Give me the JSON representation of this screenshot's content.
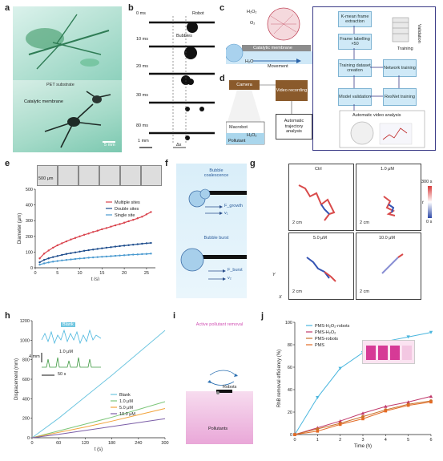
{
  "labels": {
    "a": "a",
    "b": "b",
    "c": "c",
    "d": "d",
    "e": "e",
    "f": "f",
    "g": "g",
    "h": "h",
    "i": "i",
    "j": "j"
  },
  "panel_a": {
    "pet": "PET substrate",
    "catalytic": "Catalytic membrane",
    "scale": "5 mm"
  },
  "panel_b": {
    "times": [
      "0 ms",
      "10 ms",
      "20 ms",
      "30 ms",
      "80 ms"
    ],
    "robot": "Robot",
    "bubbles": "Bubbles",
    "scale": "1 mm",
    "dx": "Δx"
  },
  "panel_c": {
    "h2o2": "H₂O₂",
    "o2": "O₂",
    "membrane": "Catalytic membrane",
    "h2o": "H₂O",
    "movement": "Movement"
  },
  "panel_d": {
    "camera": "Camera",
    "video": "Video recording",
    "auto": "Automatic trajectory analysis",
    "macrobot": "Macrobot",
    "pollutant": "Pollutant",
    "h2o2": "H₂O₂"
  },
  "pipeline": {
    "steps": [
      "K-mean frame extraction",
      "Frame labelling ×50",
      "Training dataset creation",
      "Network training",
      "Model validation",
      "ResNet training"
    ],
    "training": "Training",
    "validation": "Validation",
    "auto_video": "Automatic video analysis"
  },
  "panel_e": {
    "ylabel": "Diameter (μm)",
    "xlabel": "t (s)",
    "scale": "500 μm",
    "legend": [
      "Multiple sites",
      "Double sites",
      "Single site"
    ],
    "chart_data": {
      "type": "line",
      "xlabel": "t (s)",
      "ylabel": "Diameter (μm)",
      "xlim": [
        0,
        27
      ],
      "ylim": [
        0,
        500
      ],
      "xticks": [
        0,
        5,
        10,
        15,
        20,
        25
      ],
      "yticks": [
        0,
        100,
        200,
        300,
        400,
        500
      ],
      "series": [
        {
          "name": "Multiple sites",
          "color": "#d9434d",
          "x": [
            1,
            2,
            3,
            4,
            5,
            6,
            7,
            8,
            9,
            10,
            11,
            12,
            13,
            14,
            15,
            16,
            17,
            18,
            19,
            20,
            21,
            22,
            23,
            24,
            25,
            26
          ],
          "y": [
            60,
            90,
            110,
            128,
            143,
            156,
            168,
            180,
            190,
            200,
            210,
            218,
            228,
            236,
            245,
            253,
            262,
            270,
            278,
            287,
            296,
            305,
            315,
            325,
            340,
            355
          ]
        },
        {
          "name": "Double sites",
          "color": "#1d4c8c",
          "x": [
            1,
            2,
            3,
            4,
            5,
            6,
            7,
            8,
            9,
            10,
            11,
            12,
            13,
            14,
            15,
            16,
            17,
            18,
            19,
            20,
            21,
            22,
            23,
            24,
            25,
            26
          ],
          "y": [
            35,
            50,
            60,
            68,
            75,
            82,
            88,
            93,
            98,
            103,
            108,
            112,
            116,
            120,
            124,
            128,
            131,
            135,
            138,
            141,
            144,
            147,
            150,
            153,
            156,
            158
          ]
        },
        {
          "name": "Single site",
          "color": "#4a9ad0",
          "x": [
            1,
            2,
            3,
            4,
            5,
            6,
            7,
            8,
            9,
            10,
            11,
            12,
            13,
            14,
            15,
            16,
            17,
            18,
            19,
            20,
            21,
            22,
            23,
            24,
            25,
            26
          ],
          "y": [
            20,
            28,
            34,
            39,
            43,
            47,
            50,
            53,
            56,
            59,
            61,
            64,
            66,
            68,
            70,
            72,
            74,
            76,
            78,
            80,
            82,
            84,
            85,
            87,
            88,
            90
          ]
        }
      ]
    }
  },
  "panel_f": {
    "coalescence": "Bubble coalescence",
    "burst": "Bubble burst",
    "fgrowth": "F_growth",
    "v1": "v₁",
    "fburst": "F_burst",
    "v2": "v₂"
  },
  "panel_g": {
    "titles": [
      "Ctrl",
      "1.0 μM",
      "5.0 μM",
      "10.0 μM"
    ],
    "scale": "2 cm",
    "cbar_top": "300 s",
    "cbar_bot": "0 s",
    "cbar_label": "t",
    "x": "X",
    "y": "Y"
  },
  "panel_h": {
    "ylabel": "Displacement (mm)",
    "xlabel": "t (s)",
    "inset_blank": "Blank",
    "inset_1": "1.0 μM",
    "inset_scale_y": "4 mm",
    "inset_scale_x": "50 s",
    "chart_data": {
      "type": "line",
      "xlabel": "t (s)",
      "ylabel": "Displacement (mm)",
      "xlim": [
        0,
        300
      ],
      "ylim": [
        0,
        1200
      ],
      "xticks": [
        0,
        60,
        120,
        180,
        240,
        300
      ],
      "yticks": [
        0,
        200,
        400,
        600,
        800,
        1000,
        1200
      ],
      "series": [
        {
          "name": "Blank",
          "color": "#6fc6e0",
          "x": [
            0,
            60,
            120,
            180,
            240,
            300
          ],
          "y": [
            0,
            200,
            420,
            640,
            870,
            1100
          ]
        },
        {
          "name": "1.0 μM",
          "color": "#7cc679",
          "x": [
            0,
            60,
            120,
            180,
            240,
            300
          ],
          "y": [
            0,
            70,
            140,
            210,
            290,
            370
          ]
        },
        {
          "name": "5.0 μM",
          "color": "#f2a33a",
          "x": [
            0,
            60,
            120,
            180,
            240,
            300
          ],
          "y": [
            0,
            55,
            110,
            170,
            235,
            300
          ]
        },
        {
          "name": "10.0 μM",
          "color": "#7b5ea7",
          "x": [
            0,
            60,
            120,
            180,
            240,
            300
          ],
          "y": [
            0,
            35,
            75,
            115,
            155,
            195
          ]
        }
      ]
    }
  },
  "panel_i": {
    "title": "Active pollutant removal",
    "robots": "Robots",
    "pollutants": "Pollutants"
  },
  "panel_j": {
    "ylabel": "RhB removal efficiency (%)",
    "xlabel": "Time (h)",
    "chart_data": {
      "type": "line",
      "xlabel": "Time (h)",
      "ylabel": "RhB removal efficiency (%)",
      "xlim": [
        0,
        6
      ],
      "ylim": [
        0,
        100
      ],
      "xticks": [
        0,
        1,
        2,
        3,
        4,
        5,
        6
      ],
      "yticks": [
        0,
        20,
        40,
        60,
        80,
        100
      ],
      "series": [
        {
          "name": "PMS-H₂O₂-robots",
          "color": "#4ab6de",
          "marker": "tri-down",
          "x": [
            0,
            1,
            2,
            3,
            4,
            5,
            6
          ],
          "y": [
            0,
            33,
            59,
            73,
            83,
            87,
            91
          ]
        },
        {
          "name": "PMS-H₂O₂",
          "color": "#c0396b",
          "marker": "tri-up",
          "x": [
            0,
            1,
            2,
            3,
            4,
            5,
            6
          ],
          "y": [
            0,
            6,
            12,
            19,
            25,
            29,
            34
          ]
        },
        {
          "name": "PMS-robots",
          "color": "#c7712a",
          "marker": "circle",
          "x": [
            0,
            1,
            2,
            3,
            4,
            5,
            6
          ],
          "y": [
            0,
            5,
            10,
            16,
            22,
            27,
            30
          ]
        },
        {
          "name": "PMS",
          "color": "#e36a24",
          "marker": "square",
          "x": [
            0,
            1,
            2,
            3,
            4,
            5,
            6
          ],
          "y": [
            0,
            3,
            9,
            14,
            21,
            26,
            29
          ]
        }
      ]
    }
  }
}
